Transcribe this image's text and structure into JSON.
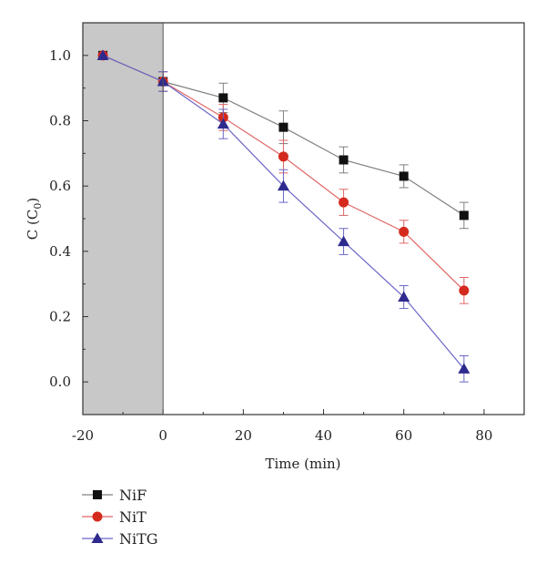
{
  "chart_data": {
    "type": "line",
    "xlabel": "Time (min)",
    "ylabel": {
      "main": "C (C",
      "sub": "0",
      "close": ")"
    },
    "xlim": [
      -20,
      90
    ],
    "ylim": [
      -0.1,
      1.1
    ],
    "xticks": [
      -20,
      0,
      20,
      40,
      60,
      80
    ],
    "yticks": [
      0.0,
      0.2,
      0.4,
      0.6,
      0.8,
      1.0
    ],
    "xtick_labels": [
      "-20",
      "0",
      "20",
      "40",
      "60",
      "80"
    ],
    "ytick_labels": [
      "0.0",
      "0.2",
      "0.4",
      "0.6",
      "0.8",
      "1.0"
    ],
    "dark_region": {
      "x_from": -20,
      "x_to": 0,
      "color": "#c8c8c8"
    },
    "x": [
      -15,
      0,
      15,
      30,
      45,
      60,
      75
    ],
    "series": [
      {
        "name": "NiF",
        "marker": "square",
        "color": "#111111",
        "line_color": "#808080",
        "values": [
          1.0,
          0.92,
          0.87,
          0.78,
          0.68,
          0.63,
          0.51
        ],
        "errors": [
          0.0,
          0.03,
          0.045,
          0.05,
          0.04,
          0.035,
          0.04
        ]
      },
      {
        "name": "NiT",
        "marker": "circle",
        "color": "#d42a1e",
        "line_color": "#e06666",
        "values": [
          1.0,
          0.92,
          0.81,
          0.69,
          0.55,
          0.46,
          0.28
        ],
        "errors": [
          0.0,
          0.03,
          0.04,
          0.05,
          0.04,
          0.035,
          0.04
        ]
      },
      {
        "name": "NiTG",
        "marker": "triangle",
        "color": "#2e2a8e",
        "line_color": "#6a66c6",
        "values": [
          1.0,
          0.92,
          0.79,
          0.6,
          0.43,
          0.26,
          0.04
        ],
        "errors": [
          0.0,
          0.03,
          0.045,
          0.05,
          0.04,
          0.035,
          0.04
        ]
      }
    ],
    "legend_position": "bottom-left",
    "grid": false
  }
}
